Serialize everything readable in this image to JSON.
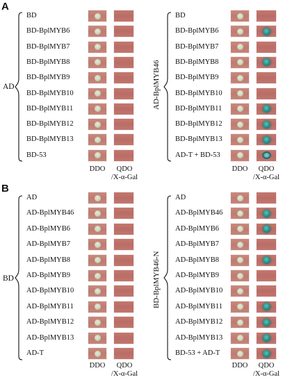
{
  "panel_a": {
    "letter": "A",
    "left": {
      "group_label": "AD",
      "rows": [
        "BD",
        "BD-BplMYB6",
        "BD-BplMYB7",
        "BD-BplMYB8",
        "BD-BplMYB9",
        "BD-BplMYB10",
        "BD-BplMYB11",
        "BD-BplMYB12",
        "BD-BplMYB13",
        "BD-53"
      ],
      "col1_label": "DDO",
      "col2_label": "QDO",
      "col2_sub": "/X-α-Gal",
      "qdo_growth": [
        "none",
        "none",
        "none",
        "none",
        "none",
        "none",
        "none",
        "none",
        "none",
        "none"
      ]
    },
    "right": {
      "group_label": "AD-BplMYB46",
      "rows": [
        "BD",
        "BD-BplMYB6",
        "BD-BplMYB7",
        "BD-BplMYB8",
        "BD-BplMYB9",
        "BD-BplMYB10",
        "BD-BplMYB11",
        "BD-BplMYB12",
        "BD-BplMYB13",
        "AD-T + BD-53"
      ],
      "col1_label": "DDO",
      "col2_label": "QDO",
      "col2_sub": "/X-α-Gal",
      "qdo_growth": [
        "none",
        "blue",
        "none",
        "blue",
        "none",
        "none",
        "blue",
        "blue",
        "blue",
        "ring"
      ]
    }
  },
  "panel_b": {
    "letter": "B",
    "left": {
      "group_label": "BD",
      "rows": [
        "AD",
        "AD-BplMYB46",
        "AD-BplMYB6",
        "AD-BplMYB7",
        "AD-BplMYB8",
        "AD-BplMYB9",
        "AD-BplMYB10",
        "AD-BplMYB11",
        "AD-BplMYB12",
        "AD-BplMYB13",
        "AD-T"
      ],
      "col1_label": "DDO",
      "col2_label": "QDO",
      "col2_sub": "/X-α-Gal",
      "qdo_growth": [
        "none",
        "none",
        "none",
        "none",
        "none",
        "none",
        "none",
        "none",
        "none",
        "none",
        "none"
      ]
    },
    "right": {
      "group_label": "BD-BplMYB46-N",
      "rows": [
        "AD",
        "AD-BplMYB46",
        "AD-BplMYB6",
        "AD-BplMYB7",
        "AD-BplMYB8",
        "AD-BplMYB9",
        "AD-BplMYB10",
        "AD-BplMYB11",
        "AD-BplMYB12",
        "AD-BplMYB13",
        "BD-53 + AD-T"
      ],
      "col1_label": "DDO",
      "col2_label": "QDO",
      "col2_sub": "/X-α-Gal",
      "qdo_growth": [
        "none",
        "blue",
        "blue",
        "none",
        "blue",
        "none",
        "none",
        "blue",
        "blue",
        "blue",
        "blue"
      ]
    }
  }
}
